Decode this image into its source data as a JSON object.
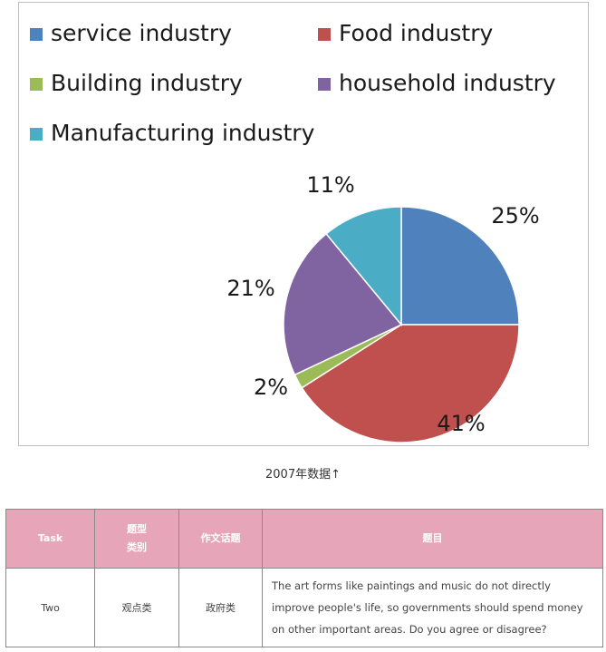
{
  "chart_data": {
    "type": "pie",
    "title": "",
    "legend_position": "top",
    "slices": [
      {
        "label": "service industry",
        "value": 25,
        "display": "25%",
        "color": "#4f81bd"
      },
      {
        "label": "Food industry",
        "value": 41,
        "display": "41%",
        "color": "#c0504d"
      },
      {
        "label": "Building industry",
        "value": 2,
        "display": "2%",
        "color": "#9bbb59"
      },
      {
        "label": "household industry",
        "value": 21,
        "display": "21%",
        "color": "#8064a2"
      },
      {
        "label": "Manufacturing industry",
        "value": 11,
        "display": "11%",
        "color": "#4bacc6"
      }
    ]
  },
  "caption": "2007年数据↑",
  "table": {
    "headers": [
      "Task",
      "题型\n类别",
      "作文话题",
      "题目"
    ],
    "rows": [
      [
        "Two",
        "观点类",
        "政府类",
        "The art forms like paintings and music do not directly improve people's life, so governments should spend money on other important areas. Do you agree or disagree?"
      ]
    ]
  },
  "colors": {
    "header_bg": "#e6a5b8",
    "header_text": "#ffffff"
  }
}
